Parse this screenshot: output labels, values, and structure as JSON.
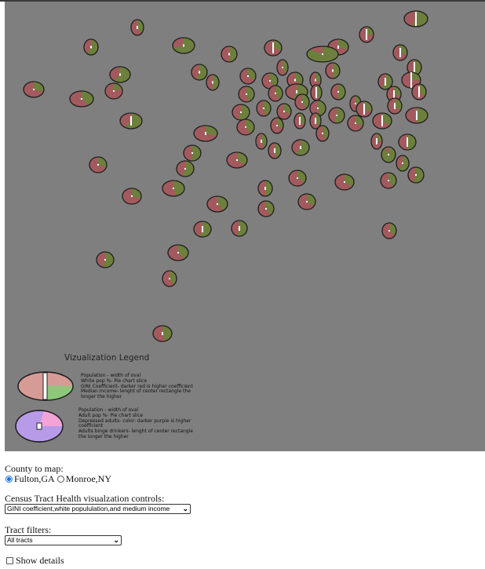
{
  "legend": {
    "title": "Vizualization Legend",
    "item1_lines": [
      "Population - width of oval",
      "White pop %- Pie chart slice",
      "GINI Coefficient- darker red  is higher coefficient",
      "Median Income- lenght of center rectangle the",
      "longer the higher"
    ],
    "item2_lines": [
      "Population - width of oval",
      "Adult pop %- Pie chart slice",
      "Depressed adults- color: darker purple  is higher",
      "coefficient",
      "Adults binge drinkers- lenght of center rectangle",
      "the longer the higher"
    ]
  },
  "controls": {
    "county_label": "County to map:",
    "county_options": [
      "Fulton,GA",
      "Monroe,NY"
    ],
    "county_selected": "Fulton,GA",
    "health_label": "Census Tract Health visualzation controls:",
    "health_selected": "GINI coefficient,white popululation,and medium income",
    "filter_label": "Tract filters:",
    "filter_selected": "All tracts",
    "details_label": "Show details",
    "details_checked": false
  },
  "colors": {
    "map_bg": "#7f7f7f",
    "oval_red": "#a35a5e",
    "oval_green": "#6d7f3c",
    "legend_red": "#d79b96",
    "legend_green": "#8fc77a",
    "legend_purple": "#b79be8",
    "legend_pink": "#f3a3d8",
    "radio_accent": "#1a73e8"
  }
}
